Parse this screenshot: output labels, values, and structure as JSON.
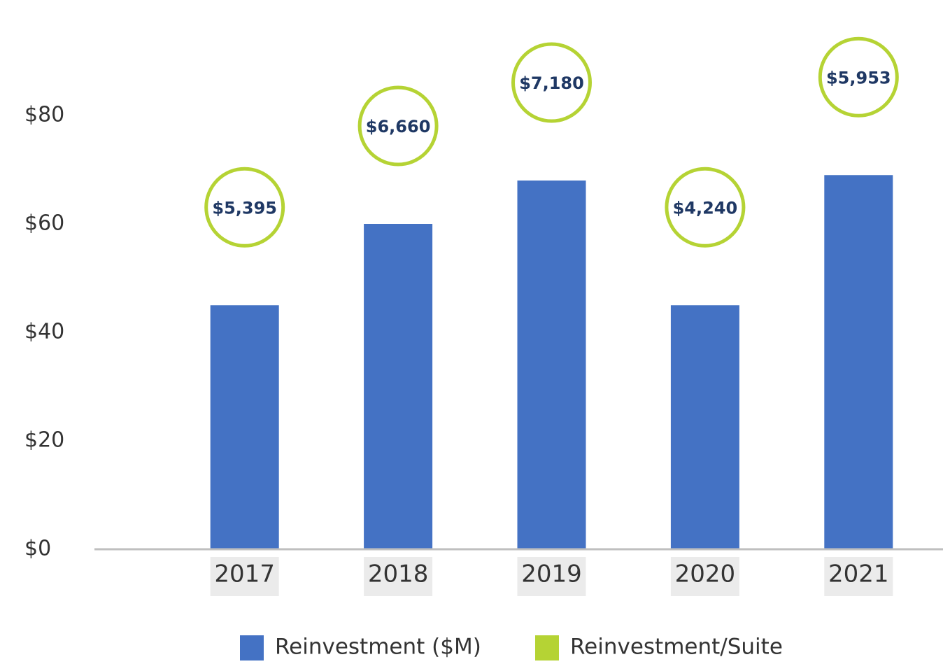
{
  "chart_data": {
    "type": "bar",
    "categories": [
      "2017",
      "2018",
      "2019",
      "2020",
      "2021"
    ],
    "series": [
      {
        "name": "Reinvestment ($M)",
        "color": "#4472c4",
        "values": [
          45,
          60,
          68,
          45,
          69
        ]
      },
      {
        "name": "Reinvestment/Suite",
        "color": "#b5d334",
        "values": [
          5395,
          6660,
          7180,
          4240,
          5953
        ],
        "value_labels": [
          "$5,395",
          "$6,660",
          "$7,180",
          "$4,240",
          "$5,953"
        ]
      }
    ],
    "ylim": [
      0,
      80
    ],
    "yticks": [
      {
        "value": 0,
        "label": "$0"
      },
      {
        "value": 20,
        "label": "$20"
      },
      {
        "value": 40,
        "label": "$40"
      },
      {
        "value": 60,
        "label": "$60"
      },
      {
        "value": 80,
        "label": "$80"
      }
    ],
    "grid": false,
    "legend": "bottom"
  }
}
